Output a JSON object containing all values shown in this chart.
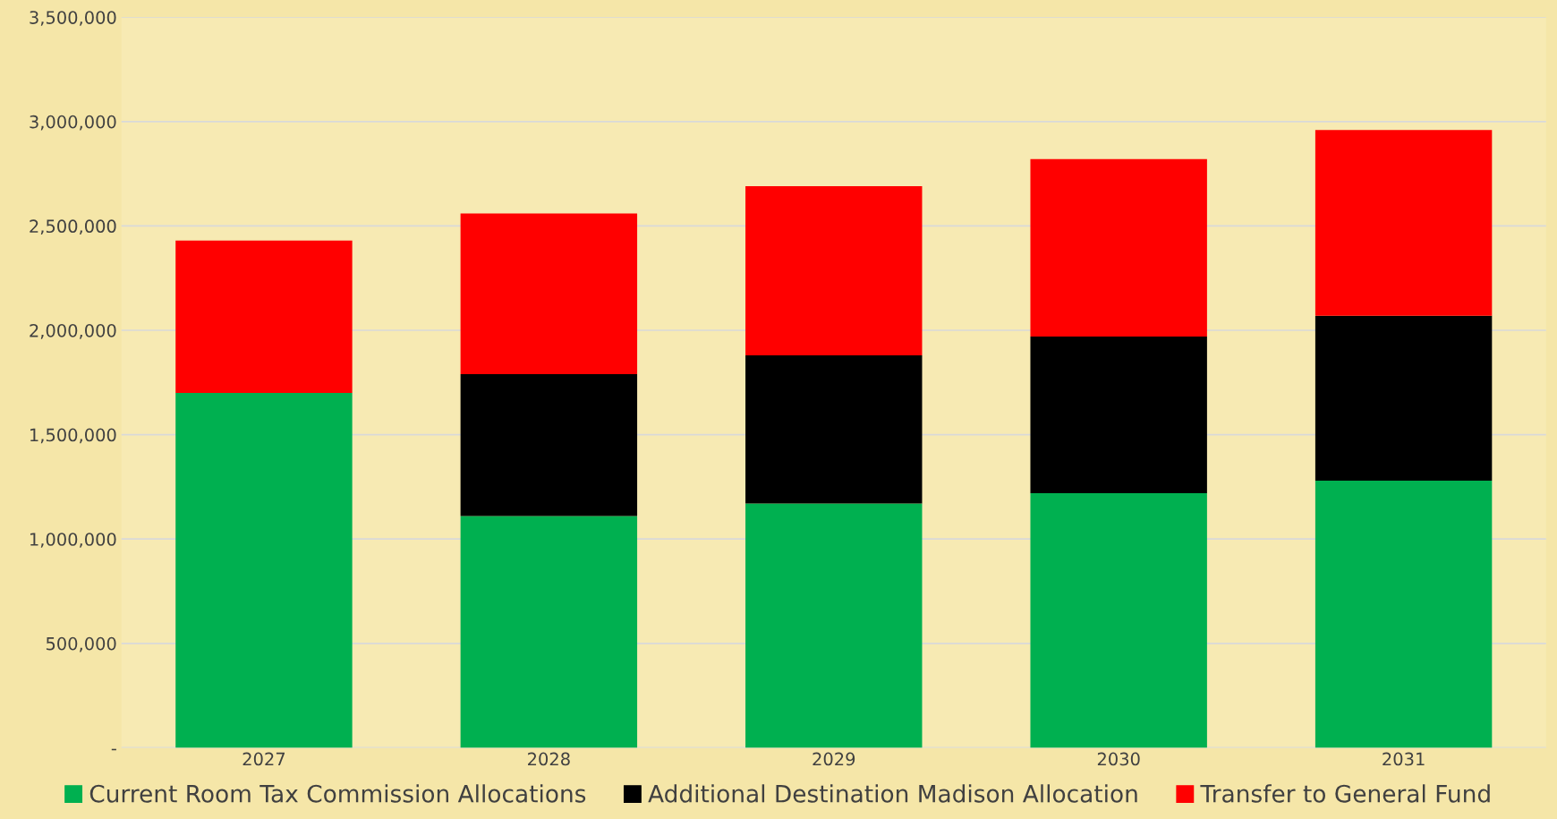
{
  "chart_data": {
    "type": "bar",
    "stacked": true,
    "categories": [
      "2027",
      "2028",
      "2029",
      "2030",
      "2031"
    ],
    "series": [
      {
        "name": "Current Room Tax Commission Allocations",
        "color": "#00b050",
        "values": [
          1700000,
          1110000,
          1170000,
          1220000,
          1280000
        ]
      },
      {
        "name": "Additional Destination Madison Allocation",
        "color": "#000000",
        "values": [
          0,
          680000,
          710000,
          750000,
          790000
        ]
      },
      {
        "name": "Transfer to General Fund",
        "color": "#ff0000",
        "values": [
          730000,
          770000,
          810000,
          850000,
          890000
        ]
      }
    ],
    "ylim": [
      0,
      3500000
    ],
    "yticks": [
      {
        "value": 0,
        "label": "-"
      },
      {
        "value": 500000,
        "label": "500,000"
      },
      {
        "value": 1000000,
        "label": "1,000,000"
      },
      {
        "value": 1500000,
        "label": "1,500,000"
      },
      {
        "value": 2000000,
        "label": "2,000,000"
      },
      {
        "value": 2500000,
        "label": "2,500,000"
      },
      {
        "value": 3000000,
        "label": "3,000,000"
      },
      {
        "value": 3500000,
        "label": "3,500,000"
      }
    ],
    "grid": "y",
    "legend": "bottom"
  }
}
